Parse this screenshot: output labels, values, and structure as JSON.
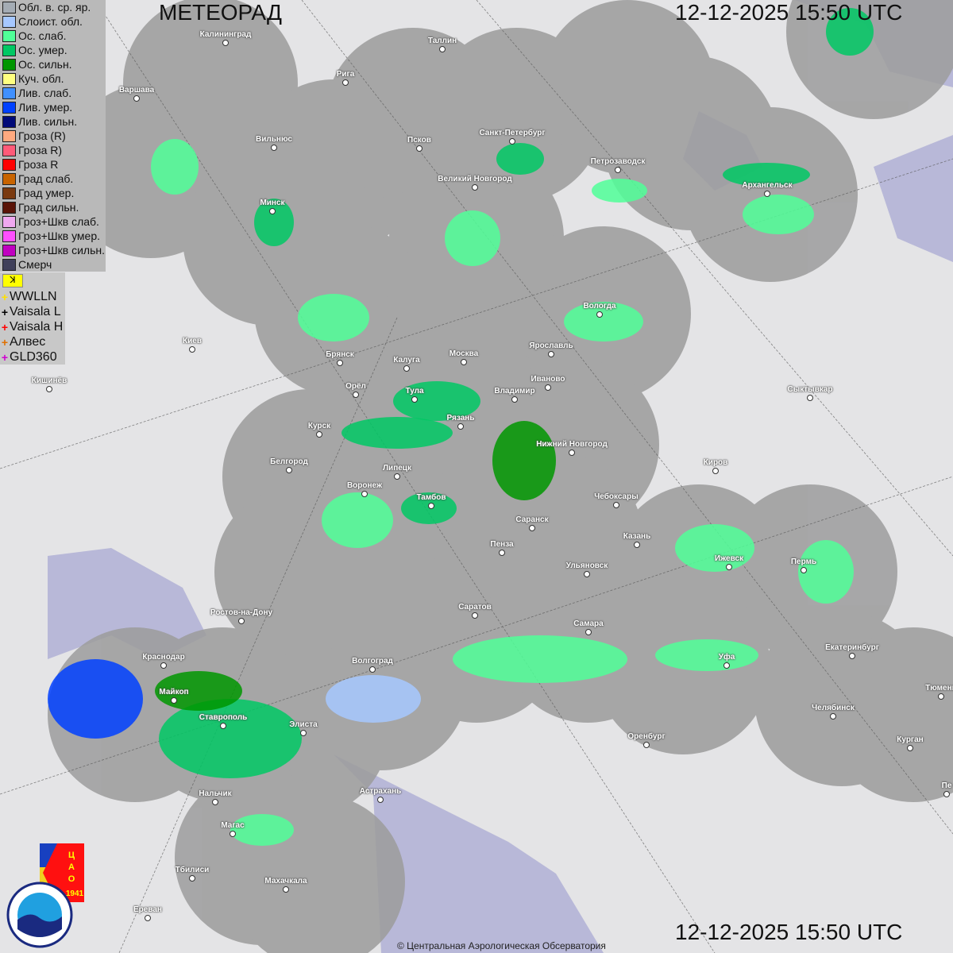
{
  "header": {
    "title": "МЕТЕОРАД",
    "timestamp": "12-12-2025  15:50 UTC"
  },
  "legend": [
    {
      "label": "Обл. в. ср. яр.",
      "color": "#a4acb4"
    },
    {
      "label": "Слоист. обл.",
      "color": "#a6c8ff"
    },
    {
      "label": "Ос. слаб.",
      "color": "#50ff98"
    },
    {
      "label": "Ос. умер.",
      "color": "#00c864"
    },
    {
      "label": "Ос. сильн.",
      "color": "#009600"
    },
    {
      "label": "Куч. обл.",
      "color": "#ffff80"
    },
    {
      "label": "Лив. слаб.",
      "color": "#4090ff"
    },
    {
      "label": "Лив. умер.",
      "color": "#0040ff"
    },
    {
      "label": "Лив. сильн.",
      "color": "#000a78"
    },
    {
      "label": "Гроза (R)",
      "color": "#ffaa80"
    },
    {
      "label": "Гроза R)",
      "color": "#ff5a78"
    },
    {
      "label": "Гроза R",
      "color": "#ff0000"
    },
    {
      "label": "Град слаб.",
      "color": "#c86400"
    },
    {
      "label": "Град умер.",
      "color": "#7a3a10"
    },
    {
      "label": "Град сильн.",
      "color": "#5a1408"
    },
    {
      "label": "Гроз+Шкв слаб.",
      "color": "#f0a8f0"
    },
    {
      "label": "Гроз+Шкв умер.",
      "color": "#ff50ff"
    },
    {
      "label": "Гроз+Шкв сильн.",
      "color": "#c000c0"
    },
    {
      "label": "Смерч",
      "color": "#40405a"
    }
  ],
  "lightning_toggle": "ꓘ",
  "lightning_sources": [
    {
      "label": "WWLLN",
      "color": "#ffe000"
    },
    {
      "label": "Vaisala L",
      "color": "#000000"
    },
    {
      "label": "Vaisala H",
      "color": "#ff0000"
    },
    {
      "label": "Алвес",
      "color": "#e07000"
    },
    {
      "label": "GLD360",
      "color": "#d000d0"
    }
  ],
  "cities": [
    "Калининград",
    "Рига",
    "Таллин",
    "Варшава",
    "Вильнюс",
    "Псков",
    "Санкт-Петербург",
    "Петрозаводск",
    "Архангельск",
    "Великий Новгород",
    "Минск",
    "Вологда",
    "Ярославль",
    "Киев",
    "Брянск",
    "Калуга",
    "Москва",
    "Иваново",
    "Кишинёв",
    "Орёл",
    "Тула",
    "Владимир",
    "Сыктывкар",
    "Рязань",
    "Курск",
    "Нижний Новгород",
    "Белгород",
    "Киров",
    "Липецк",
    "Воронеж",
    "Тамбов",
    "Чебоксары",
    "Саранск",
    "Казань",
    "Пенза",
    "Ижевск",
    "Пермь",
    "Ульяновск",
    "Саратов",
    "Ростов-на-Дону",
    "Самара",
    "Екатеринбург",
    "Краснодар",
    "Волгоград",
    "Уфа",
    "Тюмень",
    "Майкоп",
    "Челябинск",
    "Ставрополь",
    "Элиста",
    "Оренбург",
    "Курган",
    "Нальчик",
    "Астрахань",
    "Пе",
    "Магас",
    "Тбилиси",
    "Махачкала",
    "Ереван"
  ],
  "logos": {
    "cao": "ЦАО 1941",
    "roshydromet": "РОСГИДРОМЕТ ROSHYDROMET"
  },
  "copyright": "© Центральная Аэрологическая Обсерватория"
}
